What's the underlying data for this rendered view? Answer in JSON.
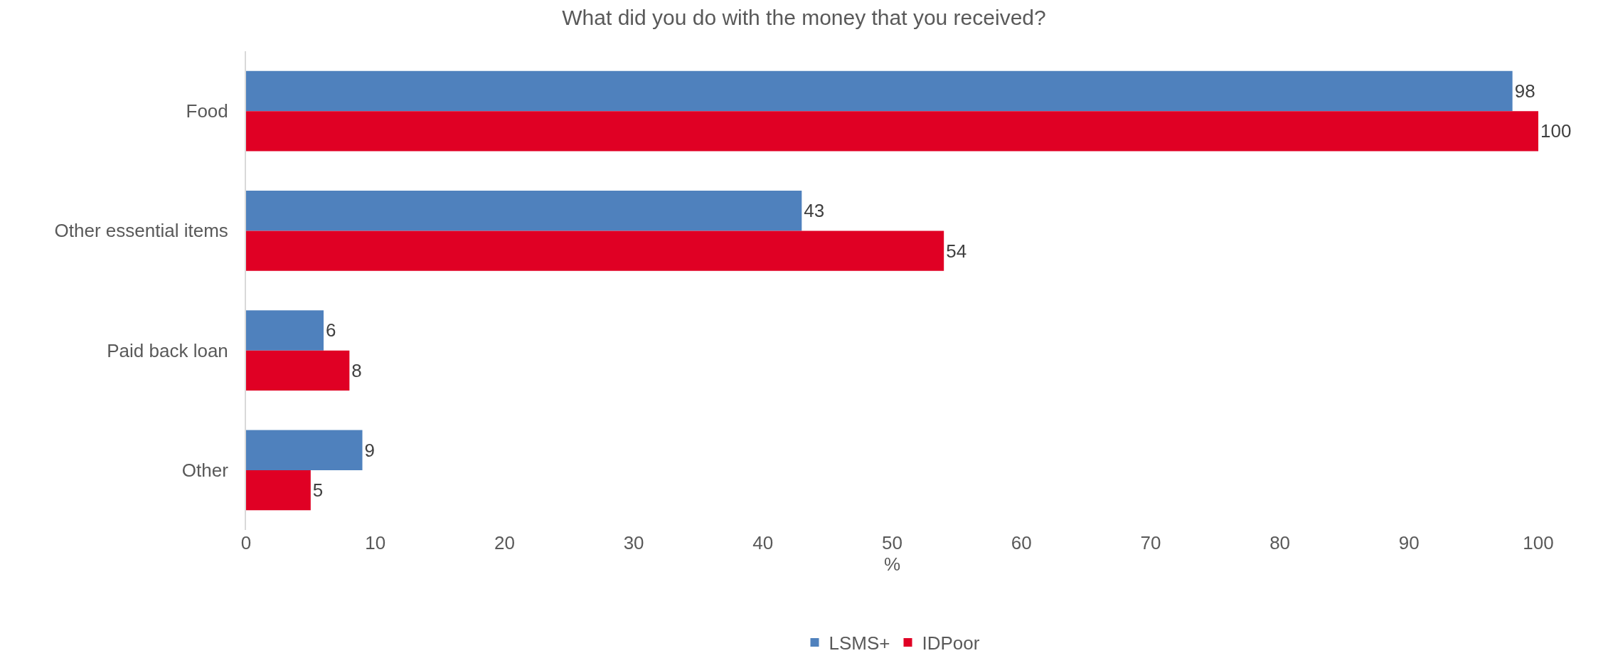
{
  "chart_data": {
    "type": "bar",
    "orientation": "horizontal",
    "title": "What did you do with the money that you received?",
    "xlabel": "%",
    "categories": [
      "Food",
      "Other essential items",
      "Paid back loan",
      "Other"
    ],
    "series": [
      {
        "name": "LSMS+",
        "color": "#4f81bd",
        "values": [
          98,
          43,
          6,
          9
        ]
      },
      {
        "name": "IDPoor",
        "color": "#e00024",
        "values": [
          100,
          54,
          8,
          5
        ]
      }
    ],
    "xlim": [
      0,
      100
    ],
    "xticks": [
      0,
      10,
      20,
      30,
      40,
      50,
      60,
      70,
      80,
      90,
      100
    ],
    "grid": false,
    "legend": "bottom",
    "data_labels": true
  }
}
